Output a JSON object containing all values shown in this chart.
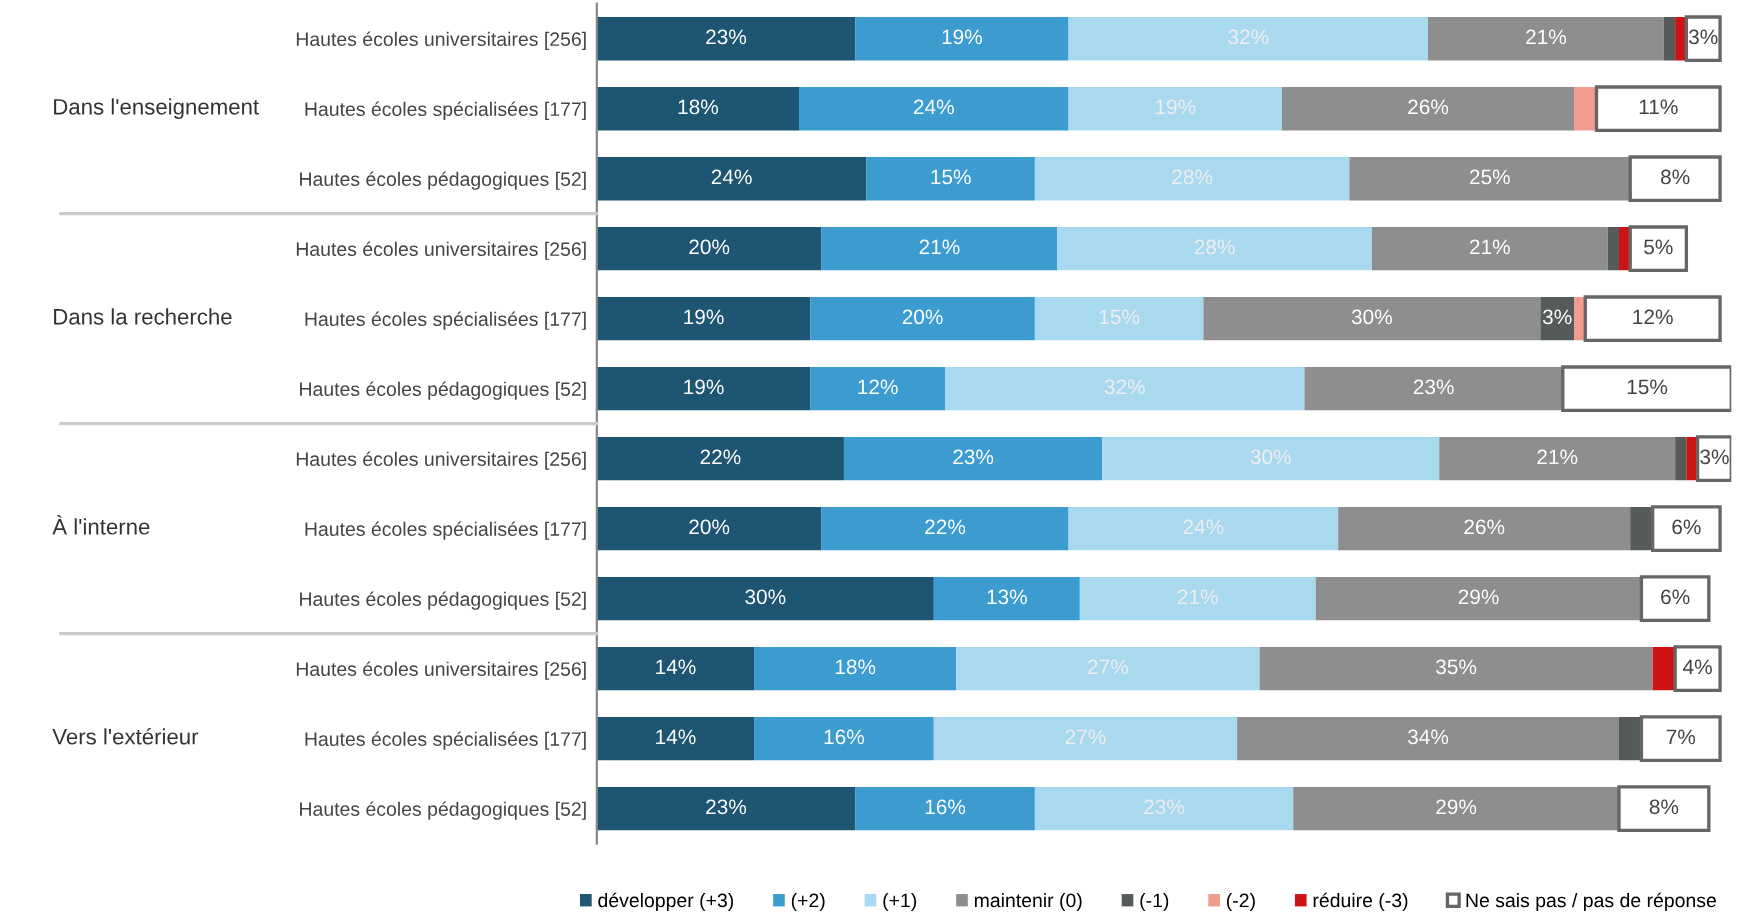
{
  "chart_data": {
    "type": "bar",
    "orientation": "horizontal",
    "stacked": true,
    "legend": "bottom",
    "grid": false,
    "tick_labels": "y",
    "categories": [
      "Hautes écoles universitaires [256]",
      "Hautes écoles spécialisées [177]",
      "Hautes écoles pédagogiques [52]",
      "Hautes écoles universitaires [256]",
      "Hautes écoles spécialisées [177]",
      "Hautes écoles pédagogiques [52]",
      "Hautes écoles universitaires [256]",
      "Hautes écoles spécialisées [177]",
      "Hautes écoles pédagogiques [52]",
      "Hautes écoles universitaires [256]",
      "Hautes écoles spécialisées [177]",
      "Hautes écoles pédagogiques [52]"
    ],
    "annotations": [
      "Dans l'enseignement",
      "Dans la recherche",
      "À l'interne",
      "Vers l'extérieur"
    ],
    "series": [
      {
        "name": "développer (+3)",
        "color": "#1d5573",
        "values": [
          23,
          18,
          24,
          20,
          19,
          19,
          22,
          20,
          30,
          14,
          14,
          23
        ],
        "value_labels": [
          "23%",
          "18%",
          "24%",
          "20%",
          "19%",
          "19%",
          "22%",
          "20%",
          "30%",
          "14%",
          "14%",
          "23%"
        ]
      },
      {
        "name": "(+2)",
        "color": "#3c9cd0",
        "values": [
          19,
          24,
          15,
          21,
          20,
          12,
          23,
          22,
          13,
          18,
          16,
          16
        ],
        "value_labels": [
          "19%",
          "24%",
          "15%",
          "21%",
          "20%",
          "12%",
          "23%",
          "22%",
          "13%",
          "18%",
          "16%",
          "16%"
        ]
      },
      {
        "name": "(+1)",
        "color": "#a9d9ef",
        "values": [
          32,
          19,
          28,
          28,
          15,
          32,
          30,
          24,
          21,
          27,
          27,
          23
        ],
        "value_labels": [
          "32%",
          "19%",
          "28%",
          "28%",
          "15%",
          "32%",
          "30%",
          "24%",
          "21%",
          "27%",
          "27%",
          "23%"
        ]
      },
      {
        "name": "maintenir (0)",
        "color": "#8e8e8e",
        "values": [
          21,
          26,
          25,
          21,
          30,
          23,
          21,
          26,
          29,
          35,
          34,
          29
        ],
        "value_labels": [
          "21%",
          "26%",
          "25%",
          "21%",
          "30%",
          "23%",
          "21%",
          "26%",
          "29%",
          "35%",
          "34%",
          "29%"
        ]
      },
      {
        "name": "(-1)",
        "color": "#555a5a",
        "values": [
          1,
          0,
          0,
          1,
          3,
          0,
          1,
          2,
          0,
          0,
          2,
          0
        ],
        "value_labels": [
          null,
          null,
          null,
          null,
          "3%",
          null,
          null,
          null,
          null,
          null,
          null,
          null
        ]
      },
      {
        "name": "(-2)",
        "color": "#ef9c8c",
        "values": [
          0,
          2,
          0,
          0,
          1,
          0,
          0,
          0,
          0,
          0,
          0,
          0
        ]
      },
      {
        "name": "réduire (-3)",
        "color": "#cc1414",
        "values": [
          1,
          0,
          0,
          1,
          0,
          0,
          1,
          0,
          0,
          2,
          0,
          0
        ]
      },
      {
        "name": "Ne sais pas / pas de réponse",
        "color": "#ffffff",
        "values": [
          3,
          11,
          8,
          5,
          12,
          15,
          3,
          6,
          6,
          4,
          7,
          8
        ],
        "value_labels": [
          "3%",
          "11%",
          "8%",
          "5%",
          "12%",
          "15%",
          "3%",
          "6%",
          "6%",
          "4%",
          "7%",
          "8%"
        ]
      }
    ]
  }
}
